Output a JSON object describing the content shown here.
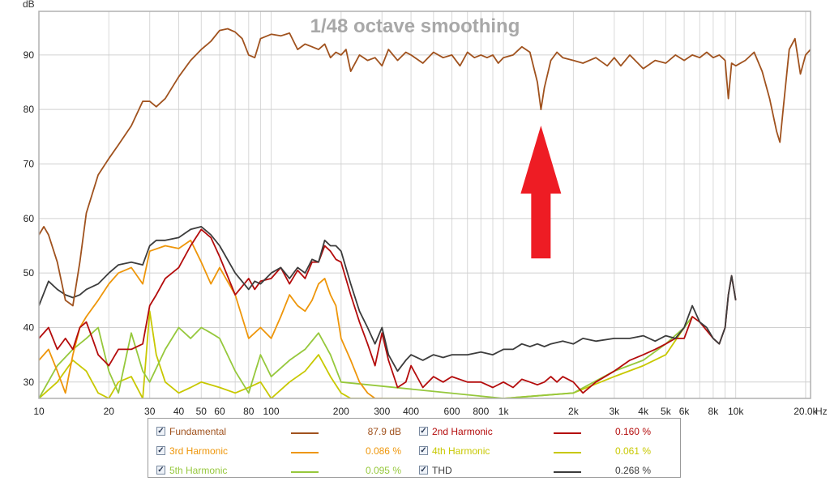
{
  "chart_data": {
    "type": "line",
    "title": "1/48 octave smoothing",
    "ylabel": "dB",
    "xunit": "Hz",
    "xscale": "log",
    "xlim": [
      10,
      21000
    ],
    "ylim": [
      27,
      98
    ],
    "grid": true,
    "x_ticks": [
      10,
      20,
      30,
      40,
      50,
      60,
      80,
      100,
      200,
      300,
      400,
      600,
      800,
      1000,
      2000,
      3000,
      4000,
      5000,
      6000,
      8000,
      10000,
      20000
    ],
    "x_tick_labels": [
      "10",
      "20",
      "30",
      "40",
      "50",
      "60",
      "80",
      "100",
      "200",
      "300",
      "400",
      "600",
      "800",
      "1k",
      "2k",
      "3k",
      "4k",
      "5k",
      "6k",
      "8k",
      "10k",
      "20.0k"
    ],
    "y_ticks": [
      30,
      40,
      50,
      60,
      70,
      80,
      90
    ],
    "y_tick_labels": [
      "30",
      "40",
      "50",
      "60",
      "70",
      "80",
      "90"
    ],
    "annotation": {
      "type": "arrow",
      "direction": "up",
      "color": "#ee1c24",
      "points_to_x": 1450,
      "points_to_y": 80
    },
    "series": [
      {
        "name": "Fundamental",
        "color": "#a0521e",
        "x": [
          10,
          10.5,
          11,
          12,
          13,
          14,
          15,
          16,
          18,
          20,
          22,
          25,
          28,
          30,
          32,
          35,
          40,
          45,
          50,
          55,
          60,
          65,
          70,
          75,
          80,
          85,
          90,
          100,
          110,
          120,
          130,
          140,
          150,
          160,
          170,
          180,
          190,
          200,
          210,
          220,
          240,
          260,
          280,
          300,
          320,
          350,
          380,
          400,
          450,
          500,
          550,
          600,
          650,
          700,
          750,
          800,
          850,
          900,
          950,
          1000,
          1100,
          1200,
          1300,
          1400,
          1450,
          1500,
          1600,
          1700,
          1800,
          2000,
          2200,
          2500,
          2800,
          3000,
          3200,
          3500,
          4000,
          4500,
          5000,
          5500,
          6000,
          6500,
          7000,
          7500,
          8000,
          8500,
          9000,
          9300,
          9600,
          10000,
          11000,
          12000,
          13000,
          14000,
          15000,
          15500,
          16000,
          17000,
          18000,
          19000,
          20000,
          21000
        ],
        "y": [
          57,
          58.5,
          57,
          52,
          45,
          44,
          52,
          61,
          68,
          71,
          73.5,
          77,
          81.5,
          81.5,
          80.5,
          82,
          86,
          89,
          91,
          92.5,
          94.5,
          94.8,
          94.2,
          93,
          90,
          89.5,
          93,
          93.8,
          93.5,
          94,
          91,
          92,
          91.5,
          91,
          92,
          89.5,
          90.5,
          90,
          91,
          87,
          90,
          89,
          89.5,
          88,
          91,
          89,
          90.5,
          90,
          88.5,
          90.5,
          89.5,
          90,
          88,
          90.5,
          89.5,
          90,
          89.5,
          90,
          88.5,
          89.5,
          90,
          91.5,
          90.5,
          85,
          80,
          84,
          89,
          90.5,
          89.5,
          89,
          88.5,
          89.5,
          88,
          89.5,
          88,
          90,
          87.5,
          89,
          88.5,
          90,
          89,
          90,
          89.5,
          90.5,
          89.5,
          90,
          89,
          82,
          88.5,
          88,
          89,
          90.5,
          87,
          82,
          76,
          74,
          80,
          91,
          93,
          86.5,
          90,
          91
        ]
      },
      {
        "name": "2nd Harmonic",
        "color": "#b40c0c",
        "x": [
          10,
          11,
          12,
          13,
          14,
          15,
          16,
          17,
          18,
          20,
          22,
          25,
          28,
          30,
          32,
          35,
          40,
          45,
          50,
          55,
          60,
          70,
          80,
          85,
          90,
          100,
          110,
          120,
          130,
          140,
          150,
          160,
          170,
          180,
          190,
          200,
          220,
          240,
          260,
          280,
          300,
          320,
          350,
          380,
          400,
          450,
          500,
          550,
          600,
          700,
          800,
          900,
          1000,
          1100,
          1200,
          1300,
          1400,
          1500,
          1600,
          1700,
          1800,
          2000,
          2200,
          2500,
          3000,
          3500,
          4000,
          4500,
          5000,
          5500,
          6000,
          6500,
          7000,
          8000,
          8500,
          9000,
          9300,
          9600,
          10000
        ],
        "y": [
          38,
          40,
          36,
          38,
          36,
          40,
          41,
          38,
          35,
          33,
          36,
          36,
          37,
          44,
          46,
          49,
          51,
          55,
          58,
          56.5,
          53,
          46,
          49,
          47,
          48.5,
          49,
          51,
          48,
          50.5,
          49,
          52,
          52,
          55,
          54,
          52.5,
          52,
          46,
          41,
          37,
          33,
          39,
          34,
          29,
          30,
          33,
          29,
          31,
          30,
          31,
          30,
          30,
          29,
          30,
          29,
          30.5,
          30,
          29.5,
          30,
          31,
          30,
          31,
          30,
          28,
          30,
          32,
          34,
          35,
          36,
          37,
          38,
          38,
          42,
          41,
          38,
          37,
          40,
          46,
          49.5,
          45
        ]
      },
      {
        "name": "3rd Harmonic",
        "color": "#ee960a",
        "x": [
          10,
          11,
          12,
          13,
          14,
          15,
          16,
          18,
          20,
          22,
          25,
          28,
          30,
          35,
          40,
          45,
          50,
          55,
          60,
          70,
          80,
          90,
          100,
          110,
          120,
          130,
          140,
          150,
          160,
          170,
          180,
          190,
          200,
          220,
          240,
          260,
          280,
          300
        ],
        "y": [
          34,
          36,
          32,
          28,
          35,
          40,
          42,
          45,
          48,
          50,
          51,
          48,
          54,
          55,
          54.5,
          56,
          52,
          48,
          51,
          46,
          38,
          40,
          38,
          42,
          46,
          44,
          43,
          45,
          48,
          49,
          46,
          44,
          38,
          34,
          30,
          28,
          27,
          27
        ]
      },
      {
        "name": "4th Harmonic",
        "color": "#c8c800",
        "x": [
          10,
          12,
          14,
          16,
          18,
          20,
          22,
          25,
          28,
          30,
          32,
          35,
          40,
          45,
          50,
          60,
          70,
          80,
          90,
          100,
          120,
          140,
          160,
          180,
          200,
          220,
          240,
          1000,
          2000,
          3000,
          4000,
          5000,
          6000,
          6500
        ],
        "y": [
          27,
          30,
          34,
          32,
          28,
          27,
          30,
          31,
          27,
          43,
          35,
          30,
          28,
          29,
          30,
          29,
          28,
          29,
          30,
          27,
          30,
          32,
          35,
          31,
          28,
          27,
          27,
          27,
          28,
          31,
          33,
          35,
          40,
          42
        ]
      },
      {
        "name": "5th Harmonic",
        "color": "#96c83c",
        "x": [
          10,
          12,
          14,
          16,
          18,
          20,
          22,
          25,
          28,
          30,
          35,
          40,
          45,
          50,
          55,
          60,
          70,
          80,
          90,
          100,
          120,
          140,
          160,
          180,
          200,
          1000,
          2000,
          3000,
          4000,
          5000,
          6000,
          6500
        ],
        "y": [
          27,
          33,
          36,
          38,
          40,
          32,
          28,
          39,
          32,
          30,
          36,
          40,
          38,
          40,
          39,
          38,
          32,
          28,
          35,
          31,
          34,
          36,
          39,
          35,
          30,
          27,
          28,
          32,
          34,
          37,
          40,
          42
        ]
      },
      {
        "name": "THD",
        "color": "#3c3c3c",
        "x": [
          10,
          11,
          12,
          13,
          14,
          15,
          16,
          18,
          20,
          22,
          25,
          28,
          30,
          32,
          35,
          40,
          45,
          50,
          55,
          60,
          70,
          80,
          85,
          90,
          100,
          110,
          120,
          130,
          140,
          150,
          160,
          170,
          180,
          190,
          200,
          220,
          240,
          260,
          280,
          300,
          320,
          350,
          380,
          400,
          450,
          500,
          550,
          600,
          700,
          800,
          900,
          1000,
          1100,
          1200,
          1300,
          1400,
          1500,
          1600,
          1800,
          2000,
          2200,
          2500,
          3000,
          3500,
          4000,
          4500,
          5000,
          5500,
          6000,
          6500,
          7000,
          7500,
          8000,
          8500,
          9000,
          9300,
          9600,
          10000
        ],
        "y": [
          44,
          48.5,
          47,
          46,
          45.5,
          46,
          47,
          48,
          50,
          51.5,
          52,
          51.5,
          55,
          56,
          56,
          56.5,
          58,
          58.5,
          57,
          55,
          50,
          47,
          48.5,
          48,
          50,
          51,
          49,
          51,
          50,
          52.5,
          52,
          56,
          55,
          55,
          54,
          48,
          43,
          40,
          37,
          40,
          35,
          32,
          34,
          35,
          34,
          35,
          34.5,
          35,
          35,
          35.5,
          35,
          36,
          36,
          37,
          36.5,
          37,
          36.5,
          37,
          37.5,
          37,
          38,
          37.5,
          38,
          38,
          38.5,
          37.5,
          38.5,
          38,
          40,
          44,
          41,
          40,
          38,
          37,
          40,
          46,
          49.5,
          45
        ]
      }
    ]
  },
  "legend": {
    "items": [
      {
        "label": "Fundamental",
        "value": "87.9 dB",
        "color": "#a0521e",
        "checked": true
      },
      {
        "label": "2nd Harmonic",
        "value": "0.160 %",
        "color": "#b40c0c",
        "checked": true
      },
      {
        "label": "3rd Harmonic",
        "value": "0.086 %",
        "color": "#ee960a",
        "checked": true
      },
      {
        "label": "4th Harmonic",
        "value": "0.061 %",
        "color": "#c8c800",
        "checked": true
      },
      {
        "label": "5th Harmonic",
        "value": "0.095 %",
        "color": "#96c83c",
        "checked": true
      },
      {
        "label": "THD",
        "value": "0.268 %",
        "color": "#3c3c3c",
        "checked": true
      }
    ],
    "check_glyph": "✓"
  }
}
